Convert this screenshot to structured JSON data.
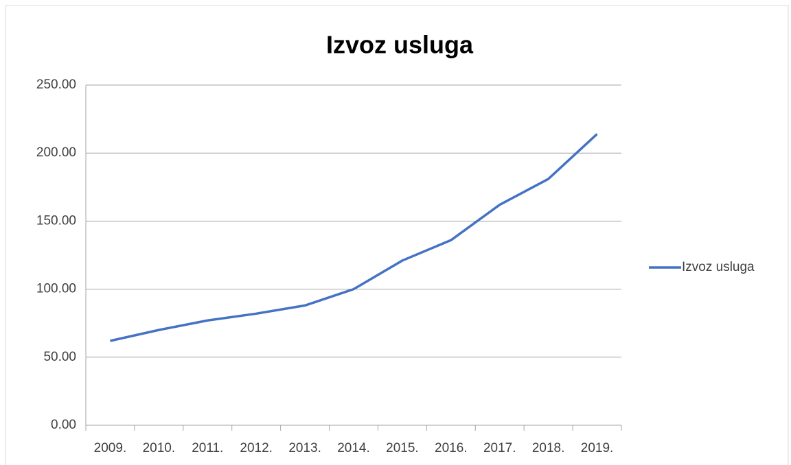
{
  "chart_data": {
    "type": "line",
    "title": "Izvoz usluga",
    "categories": [
      "2009.",
      "2010.",
      "2011.",
      "2012.",
      "2013.",
      "2014.",
      "2015.",
      "2016.",
      "2017.",
      "2018.",
      "2019."
    ],
    "series": [
      {
        "name": "Izvoz usluga",
        "color": "#4472c4",
        "values": [
          62,
          70,
          77,
          82,
          88,
          100,
          121,
          136,
          162,
          181,
          214
        ]
      }
    ],
    "ylim": [
      0,
      250
    ],
    "yticks": [
      {
        "value": 0,
        "label": "0.00"
      },
      {
        "value": 50,
        "label": "50.00"
      },
      {
        "value": 100,
        "label": "100.00"
      },
      {
        "value": 150,
        "label": "150.00"
      },
      {
        "value": 200,
        "label": "200.00"
      },
      {
        "value": 250,
        "label": "250.00"
      }
    ],
    "grid": true,
    "legend": "right"
  }
}
